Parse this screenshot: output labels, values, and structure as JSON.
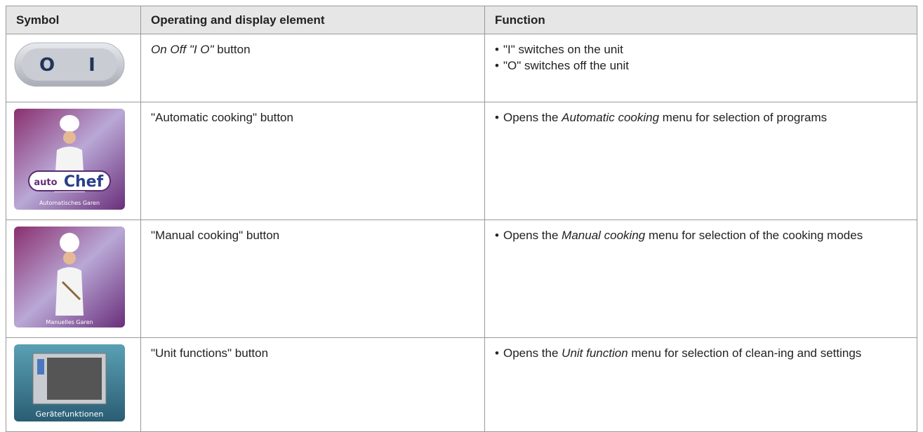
{
  "table": {
    "header": [
      "Symbol",
      "Operating and display element",
      "Function"
    ],
    "rows": [
      {
        "symbol": {
          "left": "O",
          "right": "I"
        },
        "element": {
          "em": "On Off \"I O\"",
          "after": " button"
        },
        "function": [
          {
            "text": "\"I\" switches on the unit"
          },
          {
            "text": "\"O\" switches off the unit"
          }
        ]
      },
      {
        "symbol": {
          "brand_a": "auto",
          "brand_b": "Chef",
          "caption": "Automatisches Garen"
        },
        "element": {
          "text": "\"Automatic cooking\" button"
        },
        "function": [
          {
            "before": "Opens the ",
            "em": "Automatic cooking",
            "after": " menu for selection of programs"
          }
        ]
      },
      {
        "symbol": {
          "caption": "Manuelles Garen"
        },
        "element": {
          "text": "\"Manual cooking\" button"
        },
        "function": [
          {
            "before": "Opens the ",
            "em": "Manual cooking",
            "after": " menu for selection of the cooking modes"
          }
        ]
      },
      {
        "symbol": {
          "caption": "Gerätefunktionen"
        },
        "element": {
          "text": "\"Unit functions\" button"
        },
        "function": [
          {
            "before": "Opens the ",
            "em": "Unit function",
            "after": " menu for selection of clean-ing and settings"
          }
        ]
      }
    ]
  }
}
